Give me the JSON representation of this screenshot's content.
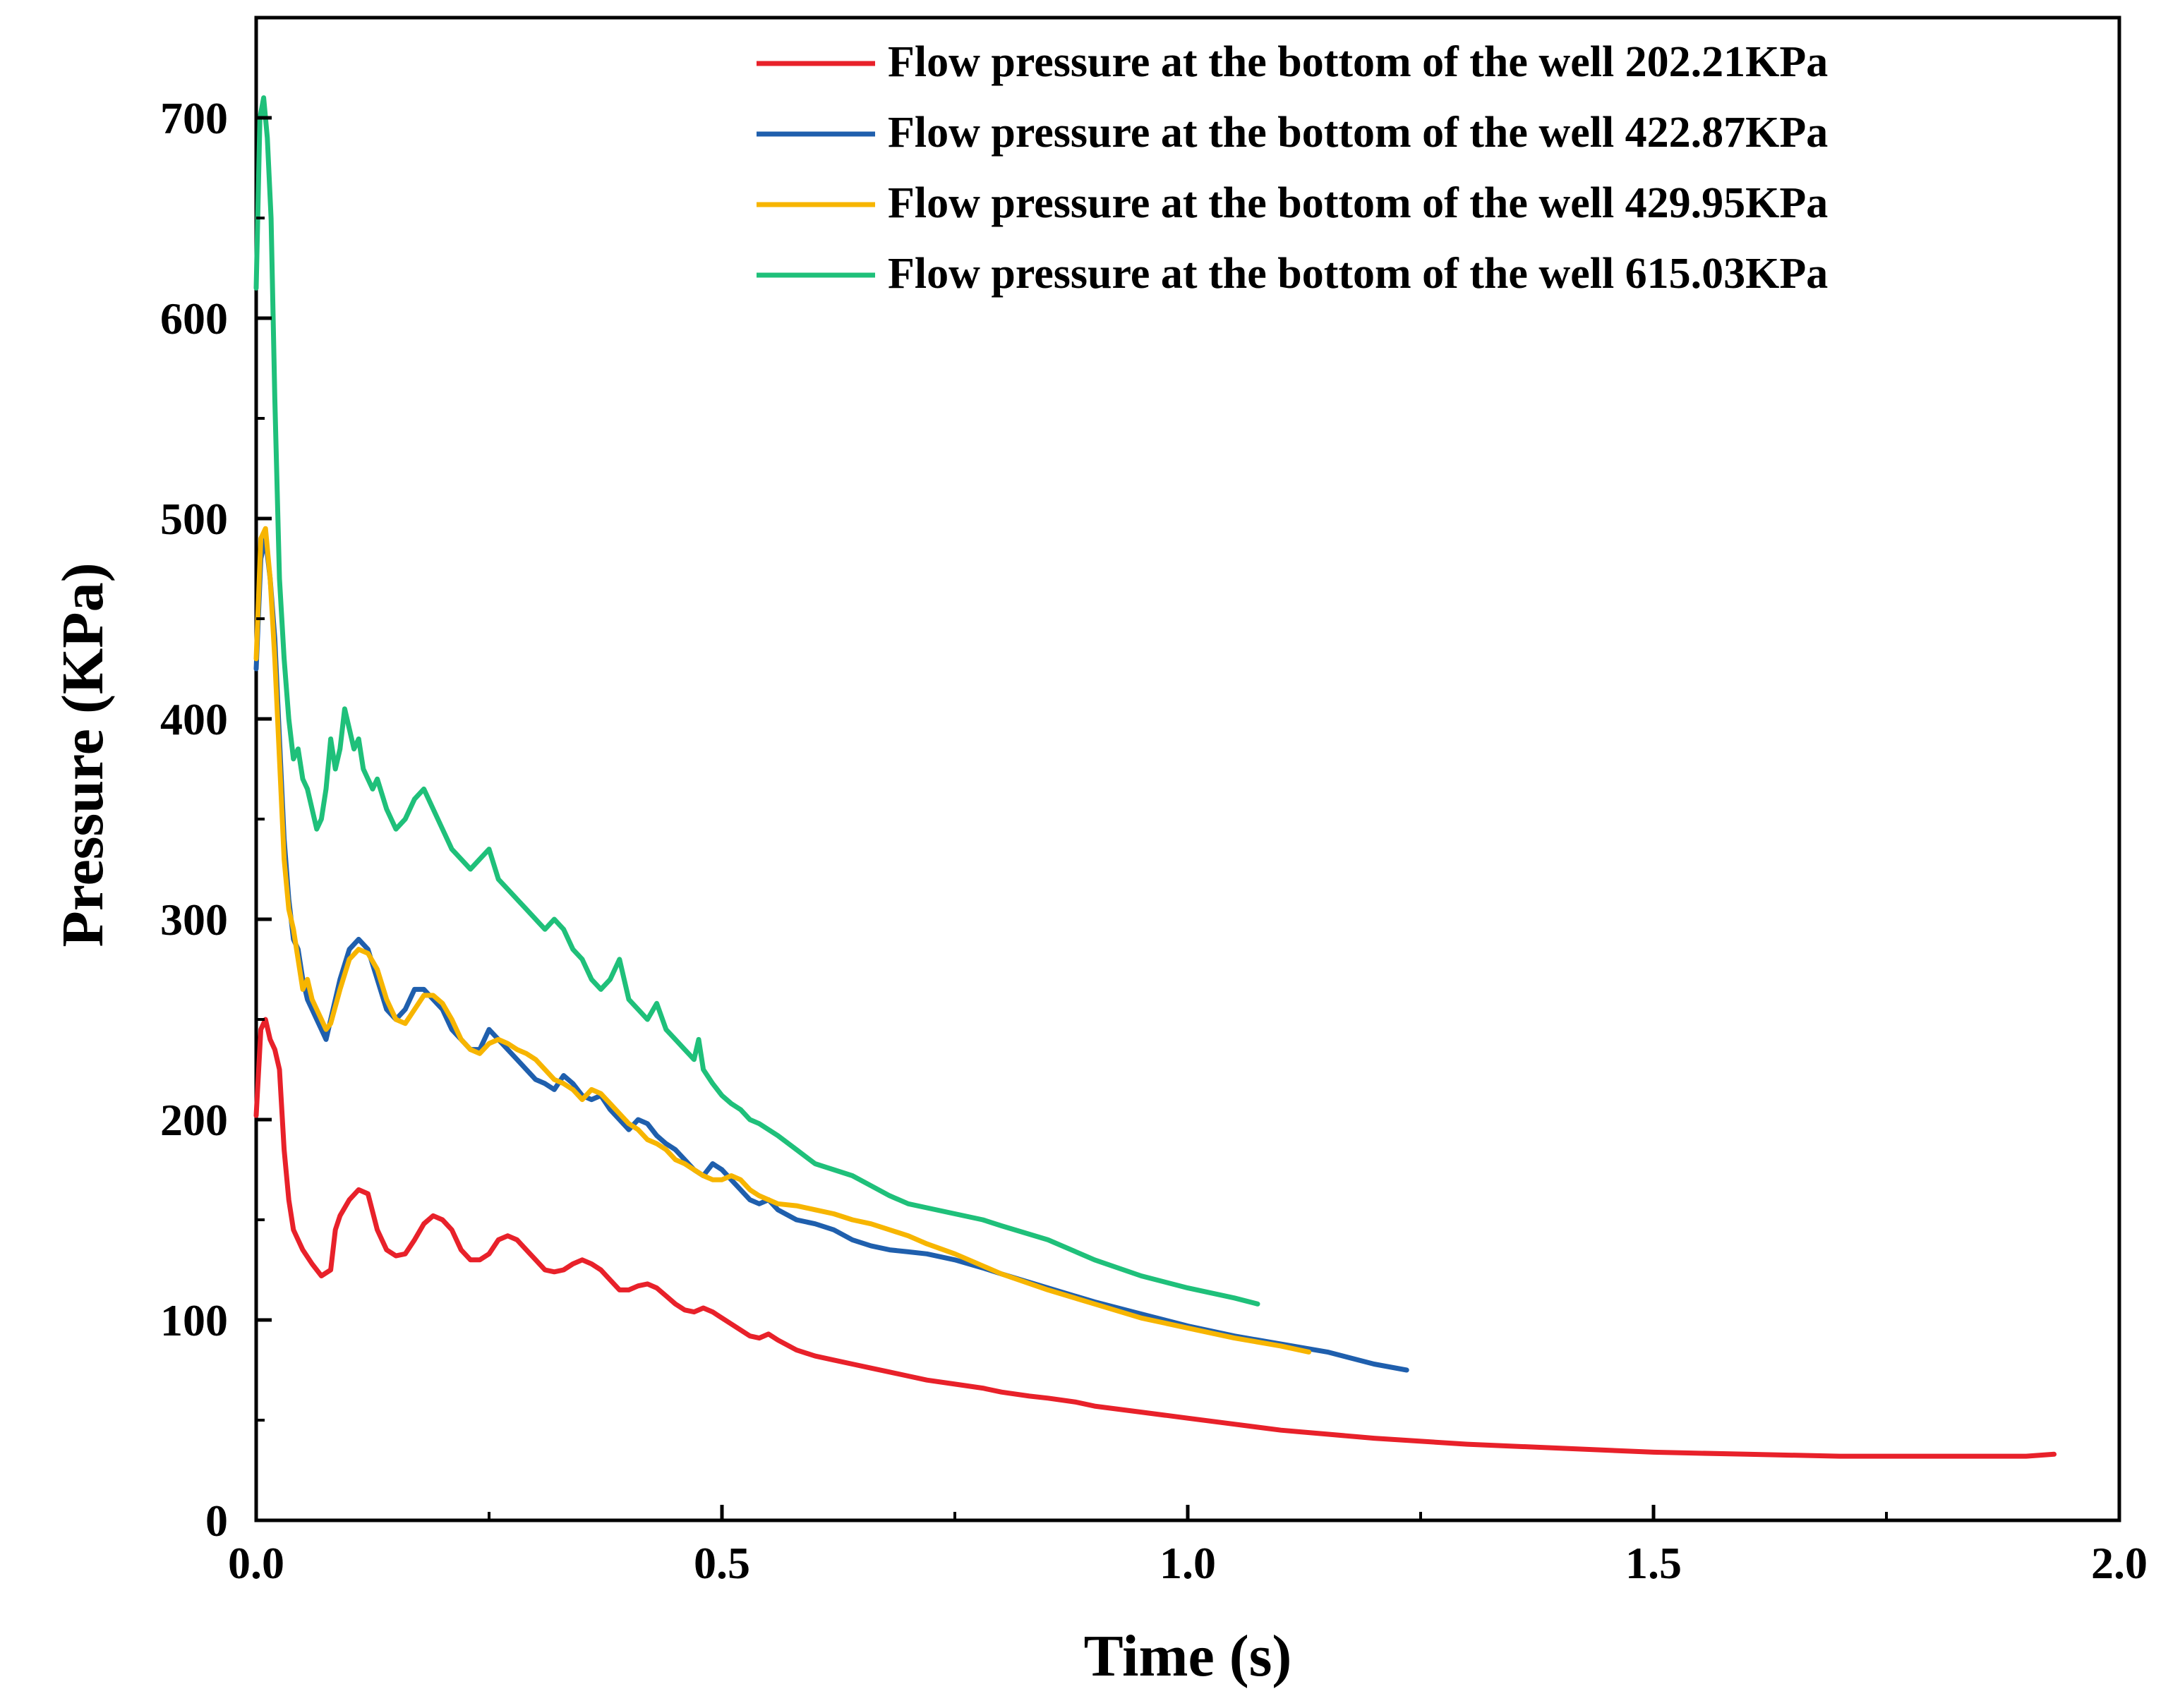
{
  "chart_data": {
    "type": "line",
    "title": "",
    "xlabel": "Time (s)",
    "ylabel": "Pressure (KPa)",
    "xlim": [
      0,
      2.0
    ],
    "ylim": [
      0,
      750
    ],
    "xticks": [
      0.0,
      0.5,
      1.0,
      1.5,
      2.0
    ],
    "xtick_labels": [
      "0.0",
      "0.5",
      "1.0",
      "1.5",
      "2.0"
    ],
    "yticks": [
      0,
      100,
      200,
      300,
      400,
      500,
      600,
      700
    ],
    "ytick_labels": [
      "0",
      "100",
      "200",
      "300",
      "400",
      "500",
      "600",
      "700"
    ],
    "grid": false,
    "legend_position": "top-right",
    "series": [
      {
        "name": "Flow pressure at the bottom of the well 202.21KPa",
        "color": "#e8212a",
        "x": [
          0.0,
          0.005,
          0.01,
          0.015,
          0.02,
          0.025,
          0.03,
          0.035,
          0.04,
          0.05,
          0.06,
          0.07,
          0.08,
          0.085,
          0.09,
          0.1,
          0.11,
          0.12,
          0.13,
          0.14,
          0.15,
          0.16,
          0.17,
          0.18,
          0.19,
          0.2,
          0.21,
          0.22,
          0.23,
          0.24,
          0.25,
          0.26,
          0.27,
          0.28,
          0.29,
          0.3,
          0.31,
          0.32,
          0.33,
          0.34,
          0.35,
          0.36,
          0.37,
          0.38,
          0.39,
          0.4,
          0.41,
          0.42,
          0.43,
          0.44,
          0.45,
          0.46,
          0.47,
          0.48,
          0.49,
          0.5,
          0.51,
          0.52,
          0.53,
          0.54,
          0.55,
          0.56,
          0.58,
          0.6,
          0.62,
          0.64,
          0.66,
          0.68,
          0.7,
          0.72,
          0.75,
          0.78,
          0.8,
          0.83,
          0.85,
          0.88,
          0.9,
          0.95,
          1.0,
          1.05,
          1.1,
          1.15,
          1.2,
          1.3,
          1.4,
          1.5,
          1.6,
          1.7,
          1.8,
          1.9,
          1.93
        ],
        "values": [
          202,
          245,
          250,
          240,
          235,
          225,
          185,
          160,
          145,
          135,
          128,
          122,
          125,
          145,
          152,
          160,
          165,
          163,
          145,
          135,
          132,
          133,
          140,
          148,
          152,
          150,
          145,
          135,
          130,
          130,
          133,
          140,
          142,
          140,
          135,
          130,
          125,
          124,
          125,
          128,
          130,
          128,
          125,
          120,
          115,
          115,
          117,
          118,
          116,
          112,
          108,
          105,
          104,
          106,
          104,
          101,
          98,
          95,
          92,
          91,
          93,
          90,
          85,
          82,
          80,
          78,
          76,
          74,
          72,
          70,
          68,
          66,
          64,
          62,
          61,
          59,
          57,
          54,
          51,
          48,
          45,
          43,
          41,
          38,
          36,
          34,
          33,
          32,
          32,
          32,
          33
        ]
      },
      {
        "name": "Flow pressure at the bottom of the well 422.87KPa",
        "color": "#1f5fad",
        "x": [
          0.0,
          0.005,
          0.01,
          0.015,
          0.02,
          0.025,
          0.03,
          0.035,
          0.04,
          0.045,
          0.05,
          0.055,
          0.06,
          0.065,
          0.07,
          0.075,
          0.08,
          0.09,
          0.1,
          0.11,
          0.12,
          0.13,
          0.14,
          0.15,
          0.16,
          0.17,
          0.18,
          0.19,
          0.2,
          0.21,
          0.22,
          0.23,
          0.24,
          0.25,
          0.26,
          0.27,
          0.28,
          0.29,
          0.3,
          0.31,
          0.32,
          0.33,
          0.34,
          0.35,
          0.36,
          0.37,
          0.38,
          0.39,
          0.4,
          0.41,
          0.42,
          0.43,
          0.44,
          0.45,
          0.46,
          0.47,
          0.48,
          0.49,
          0.5,
          0.51,
          0.52,
          0.53,
          0.54,
          0.55,
          0.56,
          0.58,
          0.6,
          0.62,
          0.64,
          0.66,
          0.68,
          0.7,
          0.72,
          0.75,
          0.78,
          0.8,
          0.85,
          0.9,
          0.95,
          1.0,
          1.05,
          1.1,
          1.15,
          1.2,
          1.235
        ],
        "values": [
          425,
          480,
          490,
          470,
          440,
          390,
          340,
          310,
          290,
          285,
          270,
          260,
          255,
          250,
          245,
          240,
          250,
          270,
          285,
          290,
          285,
          270,
          255,
          250,
          255,
          265,
          265,
          260,
          255,
          245,
          240,
          235,
          235,
          245,
          240,
          235,
          230,
          225,
          220,
          218,
          215,
          222,
          218,
          212,
          210,
          212,
          205,
          200,
          195,
          200,
          198,
          192,
          188,
          185,
          180,
          175,
          172,
          178,
          175,
          170,
          165,
          160,
          158,
          160,
          155,
          150,
          148,
          145,
          140,
          137,
          135,
          134,
          133,
          130,
          126,
          123,
          116,
          109,
          103,
          97,
          92,
          88,
          84,
          78,
          75
        ]
      },
      {
        "name": "Flow pressure at the bottom of the well 429.95KPa",
        "color": "#f7b500",
        "x": [
          0.0,
          0.005,
          0.01,
          0.015,
          0.02,
          0.025,
          0.03,
          0.035,
          0.04,
          0.045,
          0.05,
          0.055,
          0.06,
          0.065,
          0.07,
          0.075,
          0.08,
          0.09,
          0.1,
          0.11,
          0.12,
          0.13,
          0.14,
          0.15,
          0.16,
          0.17,
          0.18,
          0.19,
          0.2,
          0.21,
          0.22,
          0.23,
          0.24,
          0.25,
          0.26,
          0.27,
          0.28,
          0.29,
          0.3,
          0.31,
          0.32,
          0.33,
          0.34,
          0.35,
          0.36,
          0.37,
          0.38,
          0.39,
          0.4,
          0.41,
          0.42,
          0.43,
          0.44,
          0.45,
          0.46,
          0.47,
          0.48,
          0.49,
          0.5,
          0.51,
          0.52,
          0.53,
          0.54,
          0.55,
          0.56,
          0.58,
          0.6,
          0.62,
          0.64,
          0.66,
          0.68,
          0.7,
          0.72,
          0.75,
          0.78,
          0.8,
          0.85,
          0.9,
          0.95,
          1.0,
          1.05,
          1.1,
          1.13
        ],
        "values": [
          430,
          490,
          495,
          470,
          430,
          380,
          330,
          305,
          295,
          280,
          265,
          270,
          260,
          255,
          250,
          245,
          248,
          265,
          280,
          285,
          283,
          275,
          260,
          250,
          248,
          255,
          262,
          262,
          258,
          250,
          240,
          235,
          233,
          238,
          240,
          238,
          235,
          233,
          230,
          225,
          220,
          218,
          215,
          210,
          215,
          213,
          208,
          203,
          198,
          195,
          190,
          188,
          185,
          180,
          178,
          175,
          172,
          170,
          170,
          172,
          170,
          165,
          162,
          160,
          158,
          157,
          155,
          153,
          150,
          148,
          145,
          142,
          138,
          133,
          127,
          123,
          115,
          108,
          101,
          96,
          91,
          87,
          84
        ]
      },
      {
        "name": "Flow pressure at the bottom of the well 615.03KPa",
        "color": "#1fc07a",
        "x": [
          0.0,
          0.004,
          0.008,
          0.012,
          0.016,
          0.02,
          0.025,
          0.03,
          0.035,
          0.04,
          0.045,
          0.05,
          0.055,
          0.06,
          0.065,
          0.07,
          0.075,
          0.08,
          0.085,
          0.09,
          0.095,
          0.1,
          0.105,
          0.11,
          0.115,
          0.12,
          0.125,
          0.13,
          0.14,
          0.15,
          0.16,
          0.17,
          0.18,
          0.19,
          0.2,
          0.21,
          0.22,
          0.23,
          0.24,
          0.25,
          0.26,
          0.27,
          0.28,
          0.29,
          0.3,
          0.31,
          0.32,
          0.33,
          0.34,
          0.35,
          0.36,
          0.37,
          0.38,
          0.39,
          0.4,
          0.41,
          0.42,
          0.43,
          0.44,
          0.45,
          0.46,
          0.47,
          0.475,
          0.48,
          0.49,
          0.5,
          0.51,
          0.52,
          0.53,
          0.54,
          0.55,
          0.56,
          0.58,
          0.6,
          0.62,
          0.64,
          0.66,
          0.68,
          0.7,
          0.72,
          0.75,
          0.78,
          0.8,
          0.85,
          0.9,
          0.95,
          1.0,
          1.05,
          1.075
        ],
        "values": [
          615,
          700,
          710,
          690,
          650,
          560,
          470,
          430,
          400,
          380,
          385,
          370,
          365,
          355,
          345,
          350,
          365,
          390,
          375,
          385,
          405,
          395,
          385,
          390,
          375,
          370,
          365,
          370,
          355,
          345,
          350,
          360,
          365,
          355,
          345,
          335,
          330,
          325,
          330,
          335,
          320,
          315,
          310,
          305,
          300,
          295,
          300,
          295,
          285,
          280,
          270,
          265,
          270,
          280,
          260,
          255,
          250,
          258,
          245,
          240,
          235,
          230,
          240,
          225,
          218,
          212,
          208,
          205,
          200,
          198,
          195,
          192,
          185,
          178,
          175,
          172,
          167,
          162,
          158,
          156,
          153,
          150,
          147,
          140,
          130,
          122,
          116,
          111,
          108
        ]
      }
    ]
  }
}
